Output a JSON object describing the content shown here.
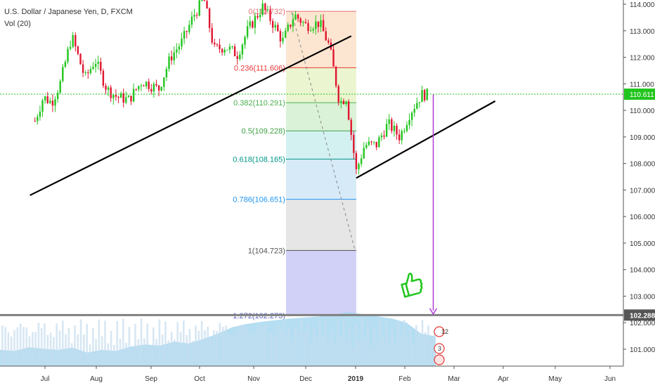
{
  "legend": {
    "title": "U.S. Dollar / Japanese Yen, D, FXCM",
    "indicator": "Vol (20)"
  },
  "colors": {
    "up": "#26a69a",
    "up_bright": "#22c51e",
    "down": "#e0152f",
    "volume": "#9dd3ee",
    "volume_bars": "#c6ddee",
    "current_price_line": "#22c51e",
    "trendline": "#000000",
    "projection_arrow": "#b23cd6",
    "horizontal_line": "#808080",
    "thumb": "#22c51e"
  },
  "chart_data": {
    "type": "candlestick",
    "symbol": "USDJPY",
    "title": "U.S. Dollar / Japanese Yen, D, FXCM",
    "indicator": "Vol (20)",
    "y_axis_ticks": [
      "114.000",
      "113.000",
      "112.000",
      "111.000",
      "110.000",
      "109.000",
      "108.000",
      "107.000",
      "106.000",
      "105.000",
      "104.000",
      "103.000",
      "102.000",
      "101.000"
    ],
    "x_axis_labels": [
      "Jul",
      "Aug",
      "Sep",
      "Oct",
      "Nov",
      "Dec",
      "2019",
      "Feb",
      "Mar",
      "Apr",
      "May",
      "Jun"
    ],
    "ylim": [
      100.5,
      114.2
    ],
    "current_price_label": "110.611",
    "current_price": 110.611,
    "horizontal_level_label": "102.288",
    "horizontal_level": 102.288,
    "fibonacci": {
      "levels": [
        {
          "label": "0(113.732)",
          "ratio": 0,
          "price": 113.732,
          "fill": "#f6c9cc",
          "line": "#e57373"
        },
        {
          "label": "0.236(111.606)",
          "ratio": 0.236,
          "price": 111.606,
          "fill": "#fbe2c9",
          "line": "#e53935"
        },
        {
          "label": "0.382(110.291)",
          "ratio": 0.382,
          "price": 110.291,
          "fill": "#e8f3c8",
          "line": "#4caf50"
        },
        {
          "label": "0.5(109.228)",
          "ratio": 0.5,
          "price": 109.228,
          "fill": "#d3f0d0",
          "line": "#43a047"
        },
        {
          "label": "0.618(108.165)",
          "ratio": 0.618,
          "price": 108.165,
          "fill": "#cdeef0",
          "line": "#009688"
        },
        {
          "label": "0.786(106.651)",
          "ratio": 0.786,
          "price": 106.651,
          "fill": "#cfe6f6",
          "line": "#2196f3"
        },
        {
          "label": "1(104.723)",
          "ratio": 1,
          "price": 104.723,
          "fill": "#e2e2e2",
          "line": "#555555"
        },
        {
          "label": "1.272(102.273)",
          "ratio": 1.272,
          "price": 102.273,
          "fill": "#c9c9f6",
          "line": "#5c6bc0"
        }
      ]
    },
    "price_path": [
      [
        "2018-06-25",
        109.6
      ],
      [
        "2018-06-30",
        110.5
      ],
      [
        "2018-07-05",
        110.3
      ],
      [
        "2018-07-10",
        111.0
      ],
      [
        "2018-07-17",
        112.8
      ],
      [
        "2018-07-25",
        111.2
      ],
      [
        "2018-07-31",
        111.9
      ],
      [
        "2018-08-07",
        110.8
      ],
      [
        "2018-08-13",
        110.5
      ],
      [
        "2018-08-20",
        110.4
      ],
      [
        "2018-08-28",
        111.1
      ],
      [
        "2018-09-07",
        110.8
      ],
      [
        "2018-09-14",
        112.0
      ],
      [
        "2018-09-21",
        112.6
      ],
      [
        "2018-09-28",
        113.6
      ],
      [
        "2018-10-04",
        114.2
      ],
      [
        "2018-10-10",
        112.3
      ],
      [
        "2018-10-17",
        112.4
      ],
      [
        "2018-10-24",
        112.1
      ],
      [
        "2018-10-30",
        113.0
      ],
      [
        "2018-11-08",
        113.9
      ],
      [
        "2018-11-14",
        113.3
      ],
      [
        "2018-11-20",
        112.6
      ],
      [
        "2018-11-27",
        113.6
      ],
      [
        "2018-12-04",
        113.2
      ],
      [
        "2018-12-12",
        113.3
      ],
      [
        "2018-12-18",
        112.4
      ],
      [
        "2018-12-24",
        110.3
      ],
      [
        "2018-12-28",
        110.5
      ],
      [
        "2019-01-03",
        107.7
      ],
      [
        "2019-01-08",
        108.7
      ],
      [
        "2019-01-15",
        108.7
      ],
      [
        "2019-01-22",
        109.5
      ],
      [
        "2019-01-29",
        109.0
      ],
      [
        "2019-02-04",
        109.9
      ],
      [
        "2019-02-11",
        110.6
      ],
      [
        "2019-02-15",
        110.6
      ]
    ],
    "trendlines": [
      {
        "from": [
          "2018-06-22",
          106.8
        ],
        "to": [
          "2018-12-31",
          112.8
        ]
      },
      {
        "from": [
          "2019-01-03",
          107.45
        ],
        "to": [
          "2019-03-27",
          110.35
        ]
      }
    ],
    "projection": {
      "from": [
        "2019-02-18",
        110.6
      ],
      "to": [
        "2019-02-18",
        102.3
      ]
    },
    "grid": false,
    "legend_position": "top-left"
  }
}
